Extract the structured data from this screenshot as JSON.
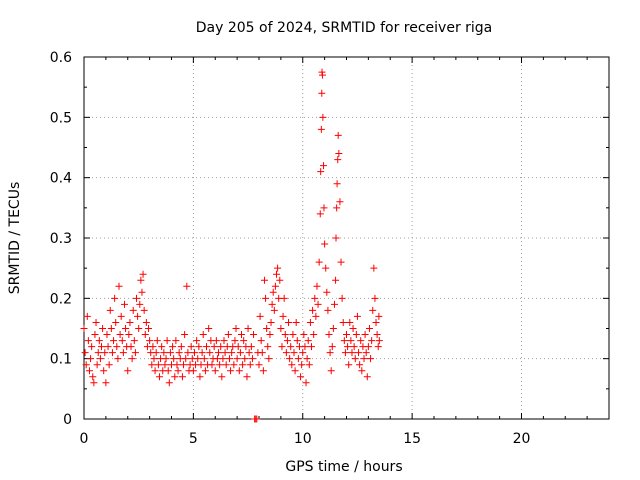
{
  "chart_data": {
    "type": "scatter",
    "title": "Day 205 of 2024, SRMTID for receiver riga",
    "xlabel": "GPS time / hours",
    "ylabel": "SRMTID / TECUs",
    "xlim": [
      0,
      24
    ],
    "ylim": [
      0,
      0.6
    ],
    "x_ticks": [
      0,
      5,
      10,
      15,
      20
    ],
    "x_tick_labels": [
      "0",
      "5",
      "10",
      "15",
      "20"
    ],
    "y_ticks": [
      0,
      0.1,
      0.2,
      0.3,
      0.4,
      0.5,
      0.6
    ],
    "y_tick_labels": [
      "0",
      "0.1",
      "0.2",
      "0.3",
      "0.4",
      "0.5",
      "0.6"
    ],
    "grid": true,
    "marker": "plus",
    "color": "#ff0000",
    "series": [
      {
        "name": "SRMTID",
        "points": [
          [
            0.0,
            0.15
          ],
          [
            0.05,
            0.11
          ],
          [
            0.1,
            0.09
          ],
          [
            0.15,
            0.17
          ],
          [
            0.2,
            0.13
          ],
          [
            0.25,
            0.08
          ],
          [
            0.3,
            0.1
          ],
          [
            0.35,
            0.12
          ],
          [
            0.4,
            0.07
          ],
          [
            0.45,
            0.06
          ],
          [
            0.5,
            0.14
          ],
          [
            0.55,
            0.16
          ],
          [
            0.6,
            0.09
          ],
          [
            0.65,
            0.11
          ],
          [
            0.7,
            0.13
          ],
          [
            0.75,
            0.1
          ],
          [
            0.8,
            0.12
          ],
          [
            0.85,
            0.15
          ],
          [
            0.9,
            0.08
          ],
          [
            0.95,
            0.11
          ],
          [
            1.0,
            0.06
          ],
          [
            1.05,
            0.14
          ],
          [
            1.1,
            0.12
          ],
          [
            1.15,
            0.09
          ],
          [
            1.2,
            0.18
          ],
          [
            1.25,
            0.15
          ],
          [
            1.3,
            0.11
          ],
          [
            1.35,
            0.13
          ],
          [
            1.4,
            0.2
          ],
          [
            1.45,
            0.16
          ],
          [
            1.5,
            0.12
          ],
          [
            1.55,
            0.1
          ],
          [
            1.6,
            0.22
          ],
          [
            1.65,
            0.14
          ],
          [
            1.7,
            0.17
          ],
          [
            1.75,
            0.13
          ],
          [
            1.8,
            0.11
          ],
          [
            1.85,
            0.19
          ],
          [
            1.9,
            0.15
          ],
          [
            1.95,
            0.12
          ],
          [
            2.0,
            0.08
          ],
          [
            2.05,
            0.14
          ],
          [
            2.1,
            0.16
          ],
          [
            2.15,
            0.12
          ],
          [
            2.2,
            0.1
          ],
          [
            2.25,
            0.18
          ],
          [
            2.3,
            0.13
          ],
          [
            2.35,
            0.11
          ],
          [
            2.4,
            0.2
          ],
          [
            2.45,
            0.17
          ],
          [
            2.5,
            0.15
          ],
          [
            2.55,
            0.19
          ],
          [
            2.6,
            0.23
          ],
          [
            2.65,
            0.21
          ],
          [
            2.7,
            0.24
          ],
          [
            2.75,
            0.18
          ],
          [
            2.8,
            0.14
          ],
          [
            2.85,
            0.16
          ],
          [
            2.9,
            0.12
          ],
          [
            2.95,
            0.15
          ],
          [
            3.0,
            0.13
          ],
          [
            3.05,
            0.11
          ],
          [
            3.1,
            0.09
          ],
          [
            3.15,
            0.12
          ],
          [
            3.2,
            0.1
          ],
          [
            3.25,
            0.08
          ],
          [
            3.3,
            0.11
          ],
          [
            3.35,
            0.13
          ],
          [
            3.4,
            0.09
          ],
          [
            3.45,
            0.07
          ],
          [
            3.5,
            0.1
          ],
          [
            3.55,
            0.12
          ],
          [
            3.6,
            0.08
          ],
          [
            3.65,
            0.11
          ],
          [
            3.7,
            0.09
          ],
          [
            3.75,
            0.1
          ],
          [
            3.8,
            0.13
          ],
          [
            3.85,
            0.08
          ],
          [
            3.9,
            0.06
          ],
          [
            3.95,
            0.11
          ],
          [
            4.0,
            0.09
          ],
          [
            4.05,
            0.12
          ],
          [
            4.1,
            0.1
          ],
          [
            4.15,
            0.07
          ],
          [
            4.2,
            0.13
          ],
          [
            4.25,
            0.09
          ],
          [
            4.3,
            0.08
          ],
          [
            4.35,
            0.11
          ],
          [
            4.4,
            0.1
          ],
          [
            4.45,
            0.12
          ],
          [
            4.5,
            0.07
          ],
          [
            4.55,
            0.09
          ],
          [
            4.6,
            0.14
          ],
          [
            4.65,
            0.1
          ],
          [
            4.7,
            0.22
          ],
          [
            4.75,
            0.11
          ],
          [
            4.8,
            0.08
          ],
          [
            4.85,
            0.09
          ],
          [
            4.9,
            0.12
          ],
          [
            4.95,
            0.1
          ],
          [
            5.0,
            0.08
          ],
          [
            5.05,
            0.11
          ],
          [
            5.1,
            0.09
          ],
          [
            5.15,
            0.13
          ],
          [
            5.2,
            0.1
          ],
          [
            5.25,
            0.12
          ],
          [
            5.3,
            0.07
          ],
          [
            5.35,
            0.09
          ],
          [
            5.4,
            0.11
          ],
          [
            5.45,
            0.14
          ],
          [
            5.5,
            0.1
          ],
          [
            5.55,
            0.08
          ],
          [
            5.6,
            0.12
          ],
          [
            5.65,
            0.09
          ],
          [
            5.7,
            0.15
          ],
          [
            5.75,
            0.11
          ],
          [
            5.8,
            0.13
          ],
          [
            5.85,
            0.09
          ],
          [
            5.9,
            0.1
          ],
          [
            5.95,
            0.12
          ],
          [
            6.0,
            0.08
          ],
          [
            6.05,
            0.13
          ],
          [
            6.1,
            0.1
          ],
          [
            6.15,
            0.11
          ],
          [
            6.2,
            0.09
          ],
          [
            6.25,
            0.12
          ],
          [
            6.3,
            0.07
          ],
          [
            6.35,
            0.1
          ],
          [
            6.4,
            0.13
          ],
          [
            6.45,
            0.11
          ],
          [
            6.5,
            0.09
          ],
          [
            6.55,
            0.12
          ],
          [
            6.6,
            0.14
          ],
          [
            6.65,
            0.1
          ],
          [
            6.7,
            0.08
          ],
          [
            6.75,
            0.11
          ],
          [
            6.8,
            0.12
          ],
          [
            6.85,
            0.09
          ],
          [
            6.9,
            0.13
          ],
          [
            6.95,
            0.15
          ],
          [
            7.0,
            0.1
          ],
          [
            7.05,
            0.12
          ],
          [
            7.1,
            0.08
          ],
          [
            7.15,
            0.11
          ],
          [
            7.2,
            0.14
          ],
          [
            7.25,
            0.09
          ],
          [
            7.3,
            0.13
          ],
          [
            7.35,
            0.1
          ],
          [
            7.4,
            0.12
          ],
          [
            7.45,
            0.07
          ],
          [
            7.5,
            0.15
          ],
          [
            7.55,
            0.11
          ],
          [
            7.6,
            0.09
          ],
          [
            7.65,
            0.12
          ],
          [
            7.7,
            0.1
          ],
          [
            7.75,
            0.14
          ],
          [
            7.8,
            0.0
          ],
          [
            7.85,
            0.0
          ],
          [
            7.9,
            0.0
          ],
          [
            7.95,
            0.11
          ],
          [
            8.0,
            0.09
          ],
          [
            8.05,
            0.17
          ],
          [
            8.1,
            0.13
          ],
          [
            8.15,
            0.11
          ],
          [
            8.2,
            0.08
          ],
          [
            8.25,
            0.23
          ],
          [
            8.3,
            0.2
          ],
          [
            8.35,
            0.15
          ],
          [
            8.4,
            0.12
          ],
          [
            8.45,
            0.1
          ],
          [
            8.5,
            0.14
          ],
          [
            8.55,
            0.16
          ],
          [
            8.6,
            0.19
          ],
          [
            8.65,
            0.21
          ],
          [
            8.7,
            0.18
          ],
          [
            8.75,
            0.22
          ],
          [
            8.8,
            0.24
          ],
          [
            8.85,
            0.25
          ],
          [
            8.9,
            0.2
          ],
          [
            8.95,
            0.23
          ],
          [
            9.0,
            0.15
          ],
          [
            9.05,
            0.12
          ],
          [
            9.1,
            0.17
          ],
          [
            9.15,
            0.2
          ],
          [
            9.2,
            0.14
          ],
          [
            9.25,
            0.11
          ],
          [
            9.3,
            0.13
          ],
          [
            9.35,
            0.16
          ],
          [
            9.4,
            0.1
          ],
          [
            9.45,
            0.12
          ],
          [
            9.5,
            0.09
          ],
          [
            9.55,
            0.14
          ],
          [
            9.6,
            0.11
          ],
          [
            9.65,
            0.08
          ],
          [
            9.7,
            0.16
          ],
          [
            9.75,
            0.13
          ],
          [
            9.8,
            0.1
          ],
          [
            9.85,
            0.12
          ],
          [
            9.9,
            0.07
          ],
          [
            9.95,
            0.09
          ],
          [
            10.0,
            0.11
          ],
          [
            10.05,
            0.14
          ],
          [
            10.1,
            0.12
          ],
          [
            10.15,
            0.06
          ],
          [
            10.2,
            0.1
          ],
          [
            10.25,
            0.13
          ],
          [
            10.3,
            0.09
          ],
          [
            10.35,
            0.16
          ],
          [
            10.4,
            0.12
          ],
          [
            10.45,
            0.18
          ],
          [
            10.5,
            0.14
          ],
          [
            10.55,
            0.2
          ],
          [
            10.6,
            0.17
          ],
          [
            10.65,
            0.22
          ],
          [
            10.7,
            0.19
          ],
          [
            10.75,
            0.26
          ],
          [
            10.8,
            0.34
          ],
          [
            10.82,
            0.41
          ],
          [
            10.85,
            0.48
          ],
          [
            10.87,
            0.54
          ],
          [
            10.88,
            0.575
          ],
          [
            10.9,
            0.57
          ],
          [
            10.92,
            0.5
          ],
          [
            10.95,
            0.42
          ],
          [
            10.97,
            0.35
          ],
          [
            11.0,
            0.29
          ],
          [
            11.05,
            0.25
          ],
          [
            11.1,
            0.21
          ],
          [
            11.15,
            0.18
          ],
          [
            11.2,
            0.14
          ],
          [
            11.25,
            0.11
          ],
          [
            11.3,
            0.08
          ],
          [
            11.35,
            0.12
          ],
          [
            11.4,
            0.15
          ],
          [
            11.45,
            0.19
          ],
          [
            11.5,
            0.23
          ],
          [
            11.52,
            0.3
          ],
          [
            11.55,
            0.35
          ],
          [
            11.57,
            0.39
          ],
          [
            11.6,
            0.43
          ],
          [
            11.62,
            0.47
          ],
          [
            11.65,
            0.44
          ],
          [
            11.7,
            0.36
          ],
          [
            11.75,
            0.26
          ],
          [
            11.8,
            0.2
          ],
          [
            11.85,
            0.16
          ],
          [
            11.9,
            0.13
          ],
          [
            11.95,
            0.11
          ],
          [
            12.0,
            0.14
          ],
          [
            12.05,
            0.12
          ],
          [
            12.1,
            0.09
          ],
          [
            12.15,
            0.16
          ],
          [
            12.2,
            0.13
          ],
          [
            12.25,
            0.11
          ],
          [
            12.3,
            0.15
          ],
          [
            12.35,
            0.12
          ],
          [
            12.4,
            0.1
          ],
          [
            12.45,
            0.14
          ],
          [
            12.5,
            0.17
          ],
          [
            12.55,
            0.11
          ],
          [
            12.6,
            0.09
          ],
          [
            12.65,
            0.13
          ],
          [
            12.7,
            0.08
          ],
          [
            12.75,
            0.12
          ],
          [
            12.8,
            0.1
          ],
          [
            12.85,
            0.14
          ],
          [
            12.9,
            0.11
          ],
          [
            12.95,
            0.07
          ],
          [
            13.0,
            0.12
          ],
          [
            13.05,
            0.15
          ],
          [
            13.1,
            0.1
          ],
          [
            13.15,
            0.13
          ],
          [
            13.2,
            0.18
          ],
          [
            13.25,
            0.25
          ],
          [
            13.3,
            0.2
          ],
          [
            13.35,
            0.16
          ],
          [
            13.4,
            0.14
          ],
          [
            13.45,
            0.12
          ],
          [
            13.48,
            0.17
          ],
          [
            13.5,
            0.13
          ]
        ]
      }
    ]
  }
}
